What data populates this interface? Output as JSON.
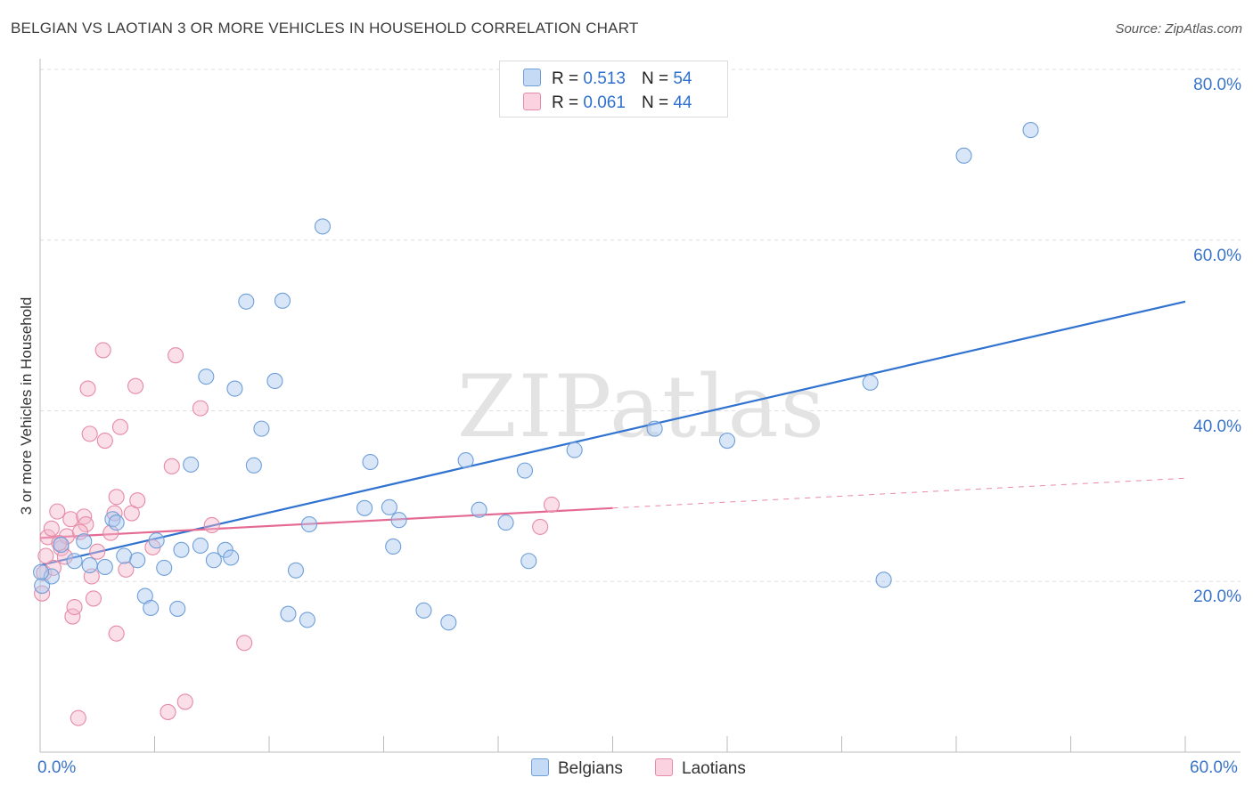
{
  "header": {
    "title": "BELGIAN VS LAOTIAN 3 OR MORE VEHICLES IN HOUSEHOLD CORRELATION CHART",
    "source": "Source: ZipAtlas.com"
  },
  "watermark": "ZIPatlas",
  "legend": {
    "rows": [
      {
        "r_label": "R =",
        "r_value": "0.513",
        "n_label": "N =",
        "n_value": "54",
        "color": "#a8c8f0"
      },
      {
        "r_label": "R =",
        "r_value": "0.061",
        "n_label": "N =",
        "n_value": "44",
        "color": "#f5b8cb"
      }
    ]
  },
  "bottom_legend": {
    "belgians": "Belgians",
    "laotians": "Laotians"
  },
  "chart_data": {
    "type": "scatter",
    "title": "BELGIAN VS LAOTIAN 3 OR MORE VEHICLES IN HOUSEHOLD CORRELATION CHART",
    "ylabel": "3 or more Vehicles in Household",
    "xlabel": "",
    "xlim": [
      0,
      60
    ],
    "ylim": [
      0,
      80
    ],
    "x_tick_labels": {
      "left": "0.0%",
      "right": "60.0%"
    },
    "y_ticks": [
      {
        "value": 20,
        "label": "20.0%"
      },
      {
        "value": 40,
        "label": "40.0%"
      },
      {
        "value": 60,
        "label": "60.0%"
      },
      {
        "value": 80,
        "label": "80.0%"
      }
    ],
    "grid": true,
    "legend_position": "top-center",
    "series": [
      {
        "name": "Belgians",
        "color": "#a8c8f0",
        "stroke": "#6f9fd8",
        "line_color": "#2f72d0",
        "trend": {
          "x0": 0,
          "y0": 21.9,
          "x1": 60,
          "y1": 52.8
        },
        "points": [
          [
            0.1,
            19.5
          ],
          [
            0.6,
            20.6
          ],
          [
            1.1,
            24.3
          ],
          [
            1.8,
            22.4
          ],
          [
            2.3,
            24.7
          ],
          [
            2.6,
            21.9
          ],
          [
            3.4,
            21.7
          ],
          [
            3.8,
            27.3
          ],
          [
            4.0,
            26.9
          ],
          [
            4.4,
            23.0
          ],
          [
            5.1,
            22.5
          ],
          [
            5.5,
            18.3
          ],
          [
            5.8,
            16.9
          ],
          [
            6.1,
            24.8
          ],
          [
            6.5,
            21.6
          ],
          [
            7.2,
            16.8
          ],
          [
            7.4,
            23.7
          ],
          [
            7.9,
            33.7
          ],
          [
            8.4,
            24.2
          ],
          [
            8.7,
            44.0
          ],
          [
            9.1,
            22.5
          ],
          [
            9.7,
            23.7
          ],
          [
            10.0,
            22.8
          ],
          [
            10.2,
            42.6
          ],
          [
            10.8,
            52.8
          ],
          [
            11.2,
            33.6
          ],
          [
            11.6,
            37.9
          ],
          [
            12.3,
            43.5
          ],
          [
            12.7,
            52.9
          ],
          [
            13.0,
            16.2
          ],
          [
            13.4,
            21.3
          ],
          [
            14.0,
            15.5
          ],
          [
            14.1,
            26.7
          ],
          [
            14.8,
            61.6
          ],
          [
            17.0,
            28.6
          ],
          [
            17.3,
            34.0
          ],
          [
            18.3,
            28.7
          ],
          [
            18.5,
            24.1
          ],
          [
            18.8,
            27.2
          ],
          [
            20.1,
            16.6
          ],
          [
            21.4,
            15.2
          ],
          [
            22.3,
            34.2
          ],
          [
            23.0,
            28.4
          ],
          [
            24.4,
            26.9
          ],
          [
            25.4,
            33.0
          ],
          [
            25.6,
            22.4
          ],
          [
            28.0,
            35.4
          ],
          [
            32.2,
            37.9
          ],
          [
            36.0,
            36.5
          ],
          [
            43.5,
            43.3
          ],
          [
            44.2,
            20.2
          ],
          [
            48.4,
            69.9
          ],
          [
            51.9,
            72.9
          ],
          [
            0.05,
            21.1
          ]
        ]
      },
      {
        "name": "Laotians",
        "color": "#f5b8cb",
        "stroke": "#e68aa6",
        "line_color": "#e46a93",
        "trend": {
          "x0": 0,
          "y0": 25.1,
          "x1": 30,
          "y1": 28.6
        },
        "trend_dashed": {
          "x0": 30,
          "y0": 28.6,
          "x1": 60,
          "y1": 32.1
        },
        "points": [
          [
            0.1,
            18.6
          ],
          [
            0.2,
            21.0
          ],
          [
            0.4,
            25.2
          ],
          [
            0.6,
            26.2
          ],
          [
            0.7,
            21.6
          ],
          [
            0.9,
            28.2
          ],
          [
            1.1,
            23.9
          ],
          [
            1.3,
            22.9
          ],
          [
            1.4,
            25.3
          ],
          [
            1.6,
            27.3
          ],
          [
            1.7,
            15.9
          ],
          [
            1.8,
            17.0
          ],
          [
            2.0,
            4.0
          ],
          [
            2.3,
            27.6
          ],
          [
            2.4,
            26.7
          ],
          [
            2.5,
            42.6
          ],
          [
            2.6,
            37.3
          ],
          [
            2.7,
            20.6
          ],
          [
            2.8,
            18.0
          ],
          [
            3.3,
            47.1
          ],
          [
            3.4,
            36.5
          ],
          [
            3.7,
            25.7
          ],
          [
            3.9,
            28.0
          ],
          [
            4.0,
            29.9
          ],
          [
            4.0,
            13.9
          ],
          [
            4.2,
            38.1
          ],
          [
            4.5,
            21.4
          ],
          [
            4.8,
            28.0
          ],
          [
            5.0,
            42.9
          ],
          [
            5.1,
            29.5
          ],
          [
            5.9,
            24.0
          ],
          [
            6.7,
            4.7
          ],
          [
            6.9,
            33.5
          ],
          [
            7.1,
            46.5
          ],
          [
            7.6,
            5.9
          ],
          [
            8.4,
            40.3
          ],
          [
            9.0,
            26.6
          ],
          [
            10.7,
            12.8
          ],
          [
            26.2,
            26.4
          ],
          [
            26.8,
            29.0
          ],
          [
            0.3,
            23.0
          ],
          [
            1.0,
            24.5
          ],
          [
            2.1,
            25.8
          ],
          [
            3.0,
            23.5
          ]
        ]
      }
    ]
  }
}
